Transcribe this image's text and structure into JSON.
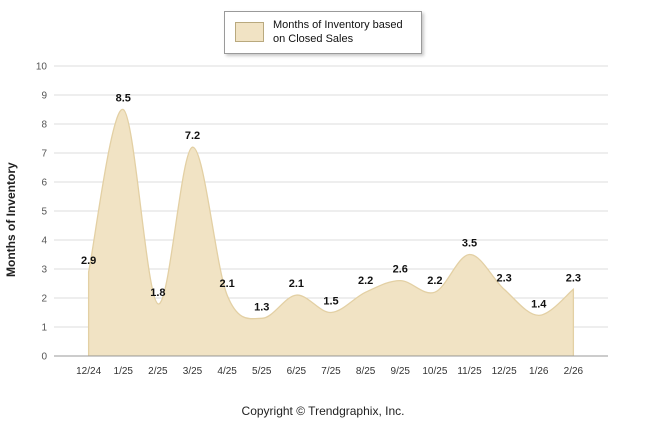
{
  "page": {
    "copyright": "Copyright © Trendgraphix, Inc."
  },
  "legend": {
    "label": "Months of Inventory based on Closed Sales"
  },
  "chart_data": {
    "type": "area",
    "categories": [
      "12/24",
      "1/25",
      "2/25",
      "3/25",
      "4/25",
      "5/25",
      "6/25",
      "7/25",
      "8/25",
      "9/25",
      "10/25",
      "11/25",
      "12/25",
      "1/26",
      "2/26"
    ],
    "values": [
      2.9,
      8.5,
      1.8,
      7.2,
      2.1,
      1.3,
      2.1,
      1.5,
      2.2,
      2.6,
      2.2,
      3.5,
      2.3,
      1.4,
      2.3
    ],
    "title": "",
    "xlabel": "",
    "ylabel": "Months of Inventory",
    "ylim": [
      0,
      10
    ],
    "yticks": [
      0,
      1,
      2,
      3,
      4,
      5,
      6,
      7,
      8,
      9,
      10
    ],
    "grid": true,
    "legend_position": "top",
    "legend_entries": [
      "Months of Inventory based on Closed Sales"
    ],
    "fill_color": "#F1E3C4",
    "line_color": "#E3D0A4",
    "grid_color": "#dddddd",
    "axis_color": "#999999"
  }
}
